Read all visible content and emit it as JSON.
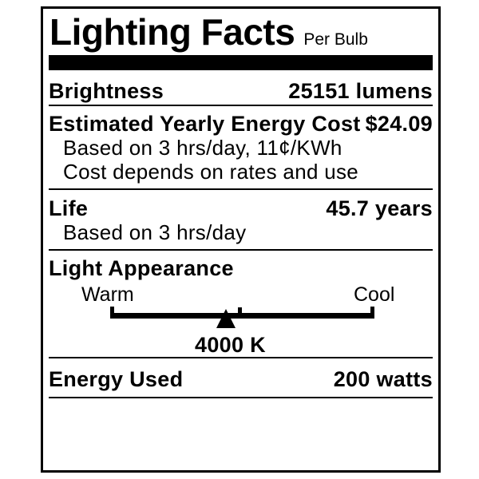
{
  "header": {
    "title": "Lighting Facts",
    "subtitle": "Per Bulb"
  },
  "rows": {
    "brightness": {
      "label": "Brightness",
      "value": "25151 lumens"
    },
    "energy_cost": {
      "label": "Estimated Yearly Energy Cost",
      "value": "$24.09",
      "notes": [
        "Based on 3 hrs/day, 11¢/KWh",
        "Cost depends on rates and use"
      ]
    },
    "life": {
      "label": "Life",
      "value": "45.7 years",
      "note": "Based on 3 hrs/day"
    },
    "light_appearance": {
      "label": "Light Appearance",
      "warm_label": "Warm",
      "cool_label": "Cool",
      "kelvin": "4000 K",
      "marker_position_pct": 43.7
    },
    "energy_used": {
      "label": "Energy Used",
      "value": "200 watts"
    }
  },
  "colors": {
    "ink": "#000000",
    "background": "#ffffff"
  }
}
